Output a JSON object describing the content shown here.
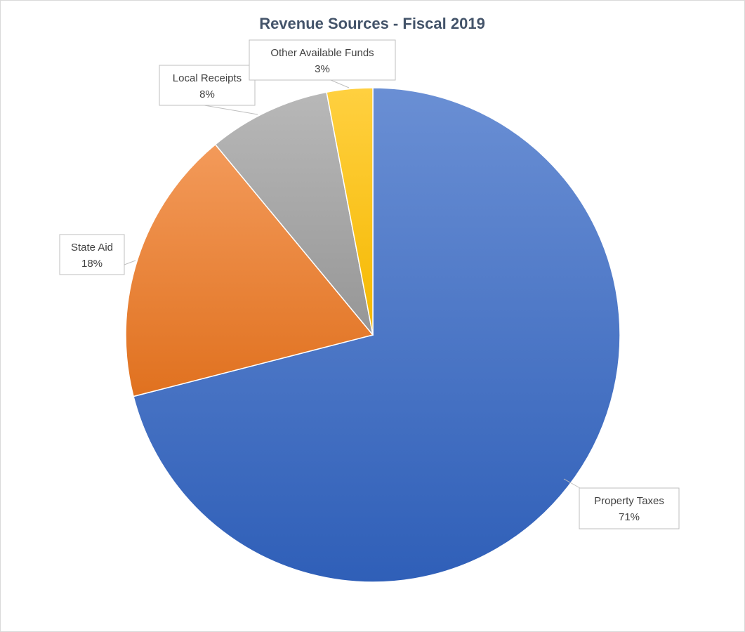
{
  "chart_data": {
    "type": "pie",
    "title": "Revenue Sources - Fiscal 2019",
    "slices": [
      {
        "label": "Property Taxes",
        "value": 71,
        "value_label": "71%",
        "color": "#4472c4"
      },
      {
        "label": "State Aid",
        "value": 18,
        "value_label": "18%",
        "color": "#ed7d31"
      },
      {
        "label": "Local Receipts",
        "value": 8,
        "value_label": "8%",
        "color": "#a5a5a5"
      },
      {
        "label": "Other Available Funds",
        "value": 3,
        "value_label": "3%",
        "color": "#ffc000"
      }
    ],
    "start_angle": "12 o'clock",
    "direction": "clockwise",
    "legend": "none",
    "data_labels": "callouts"
  }
}
